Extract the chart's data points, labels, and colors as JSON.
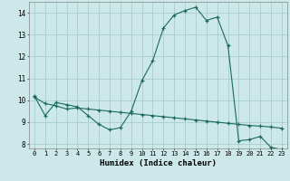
{
  "xlabel": "Humidex (Indice chaleur)",
  "bg_color": "#cce8e8",
  "line_color": "#1a6b5a",
  "grid_color": "#aacccc",
  "ylim": [
    7.8,
    14.5
  ],
  "xlim": [
    -0.5,
    23.5
  ],
  "yticks": [
    8,
    9,
    10,
    11,
    12,
    13,
    14
  ],
  "xticks": [
    0,
    1,
    2,
    3,
    4,
    5,
    6,
    7,
    8,
    9,
    10,
    11,
    12,
    13,
    14,
    15,
    16,
    17,
    18,
    19,
    20,
    21,
    22,
    23
  ],
  "curve1_x": [
    0,
    1,
    2,
    3,
    4,
    5,
    6,
    7,
    8,
    9,
    10,
    11,
    12,
    13,
    14,
    15,
    16,
    17,
    18,
    19,
    20,
    21,
    22,
    23
  ],
  "curve1_y": [
    10.2,
    9.3,
    9.9,
    9.8,
    9.7,
    9.3,
    8.9,
    8.65,
    8.75,
    9.5,
    10.9,
    11.8,
    13.3,
    13.9,
    14.1,
    14.25,
    13.65,
    13.8,
    12.5,
    8.15,
    8.2,
    8.35,
    7.85,
    7.75
  ],
  "curve2_x": [
    0,
    1,
    2,
    3,
    4,
    5,
    6,
    7,
    8,
    9,
    10,
    11,
    12,
    13,
    14,
    15,
    16,
    17,
    18,
    19,
    20,
    21,
    22,
    23
  ],
  "curve2_y": [
    10.15,
    9.85,
    9.75,
    9.6,
    9.65,
    9.6,
    9.55,
    9.5,
    9.45,
    9.4,
    9.35,
    9.3,
    9.25,
    9.2,
    9.15,
    9.1,
    9.05,
    9.0,
    8.95,
    8.9,
    8.85,
    8.82,
    8.78,
    8.72
  ]
}
